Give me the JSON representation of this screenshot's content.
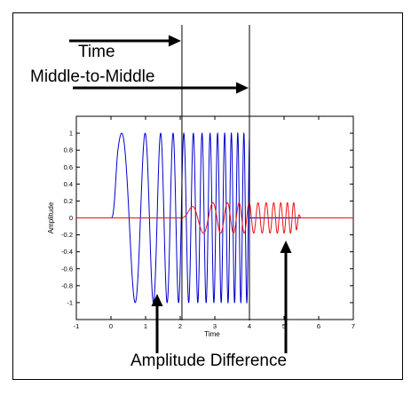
{
  "annotations": {
    "time_label": "Time",
    "middle_label": "Middle-to-Middle",
    "amplitude_difference_label": "Amplitude Difference"
  },
  "chart_data": {
    "type": "line",
    "xlabel": "Time",
    "ylabel": "Amplitude",
    "xlim": [
      -1,
      7
    ],
    "ylim": [
      -1.2,
      1.2
    ],
    "x_ticks": [
      -1,
      0,
      1,
      2,
      3,
      4,
      5,
      6,
      7
    ],
    "y_ticks": [
      -1,
      -0.8,
      -0.6,
      -0.4,
      -0.2,
      0,
      0.2,
      0.4,
      0.6,
      0.8,
      1
    ],
    "grid": false,
    "series": [
      {
        "color": "#0000cc",
        "start": 0,
        "end": 4,
        "amplitude": 1.0,
        "ramp_up": 0.2,
        "frequency_start": 0.6,
        "frequency_end": 6.0,
        "tapered_end": false
      },
      {
        "color": "#ee1111",
        "start": 2,
        "end": 5.5,
        "amplitude": 0.18,
        "ramp_up": 0.5,
        "ramp_down": 0.2,
        "frequency_start": 0.6,
        "frequency_end": 6.0
      }
    ],
    "vertical_markers": [
      2.05,
      4.0
    ]
  },
  "colors": {
    "axis": "#000000",
    "background": "#ffffff"
  }
}
